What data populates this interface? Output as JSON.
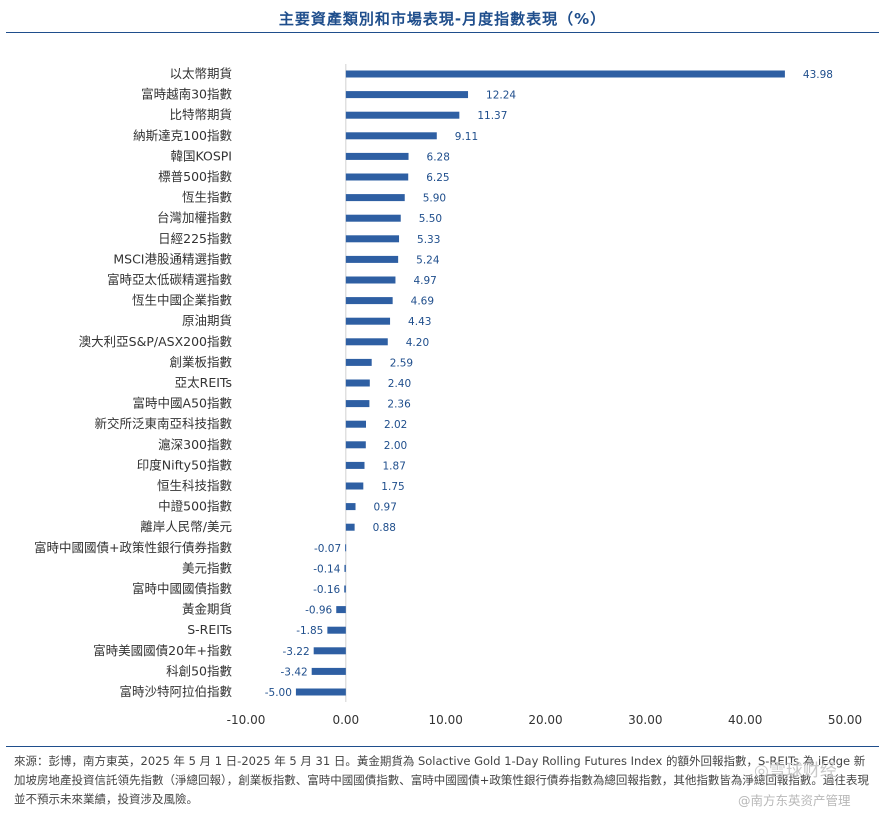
{
  "title": "主要資產類別和市場表現-月度指數表現（%）",
  "chart_data": {
    "type": "bar",
    "orientation": "horizontal",
    "categories": [
      "以太幣期貨",
      "富時越南30指數",
      "比特幣期貨",
      "納斯達克100指數",
      "韓国KOSPI",
      "標普500指數",
      "恆生指數",
      "台灣加權指數",
      "日經225指數",
      "MSCI港股通精選指數",
      "富時亞太低碳精選指數",
      "恆生中國企業指數",
      "原油期貨",
      "澳大利亞S&P/ASX200指數",
      "創業板指數",
      "亞太REITs",
      "富時中國A50指數",
      "新交所泛東南亞科技指數",
      "滬深300指數",
      "印度Nifty50指數",
      "恒生科技指數",
      "中證500指數",
      "離岸人民幣/美元",
      "富時中國國債+政策性銀行債券指數",
      "美元指數",
      "富時中國國債指數",
      "黃金期貨",
      "S-REITs",
      "富時美國國債20年+指數",
      "科創50指數",
      "富時沙特阿拉伯指數"
    ],
    "values": [
      43.98,
      12.24,
      11.37,
      9.11,
      6.28,
      6.25,
      5.9,
      5.5,
      5.33,
      5.24,
      4.97,
      4.69,
      4.43,
      4.2,
      2.59,
      2.4,
      2.36,
      2.02,
      2.0,
      1.87,
      1.75,
      0.97,
      0.88,
      -0.07,
      -0.14,
      -0.16,
      -0.96,
      -1.85,
      -3.22,
      -3.42,
      -5.0
    ],
    "value_labels": [
      "43.98",
      "12.24",
      "11.37",
      "9.11",
      "6.28",
      "6.25",
      "5.90",
      "5.50",
      "5.33",
      "5.24",
      "4.97",
      "4.69",
      "4.43",
      "4.20",
      "2.59",
      "2.40",
      "2.36",
      "2.02",
      "2.00",
      "1.87",
      "1.75",
      "0.97",
      "0.88",
      "-0.07",
      "-0.14",
      "-0.16",
      "-0.96",
      "-1.85",
      "-3.22",
      "-3.42",
      "-5.00"
    ],
    "xlim": [
      -10,
      50
    ],
    "xticks": [
      "-10.00",
      "0.00",
      "10.00",
      "20.00",
      "30.00",
      "40.00",
      "50.00"
    ],
    "xtick_values": [
      -10,
      0,
      10,
      20,
      30,
      40,
      50
    ],
    "bar_color": "#2e5fa3",
    "label_color": "#1f4e8c",
    "grid": false,
    "legend": "none"
  },
  "footnote": "來源：彭博，南方東英，2025 年 5 月 1 日-2025 年 5 月 31 日。黃金期貨為 Solactive Gold 1-Day Rolling Futures Index 的額外回報指數，S-REITs 為 iEdge 新加坡房地產投資信託領先指數（淨總回報），創業板指數、富時中國國債指數、富時中國國債+政策性銀行債券指數為總回報指數，其他指數皆為淨總回報指數。過往表現並不預示未來業績，投資涉及風險。",
  "watermarks": [
    "◎雪球财经",
    "@南方东英资产管理"
  ]
}
